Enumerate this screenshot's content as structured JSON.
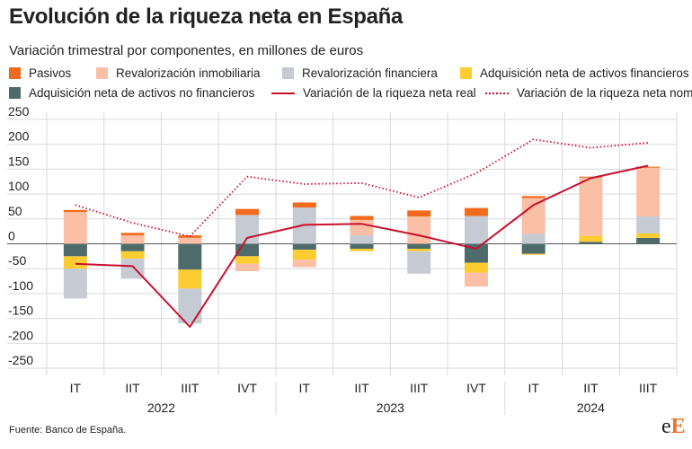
{
  "title": "Evolución de la riqueza neta en España",
  "subtitle": "Variación trimestral por componentes, en millones de euros",
  "source": "Fuente: Banco de España.",
  "logo": {
    "left": "e",
    "right": "E"
  },
  "legend": [
    {
      "label": "Pasivos",
      "kind": "box",
      "color": "#f26a1b"
    },
    {
      "label": "Revalorización inmobiliaria",
      "kind": "box",
      "color": "#fbbfa6"
    },
    {
      "label": "Revalorización financiera",
      "kind": "box",
      "color": "#c6cbd3"
    },
    {
      "label": "Adquisición neta de activos financieros",
      "kind": "box",
      "color": "#fccd31"
    },
    {
      "label": "Adquisición neta de activos no financieros",
      "kind": "box",
      "color": "#4e6b6b"
    },
    {
      "label": "Variación de la riqueza neta real",
      "kind": "line",
      "color": "#c8102e"
    },
    {
      "label": "Variación de la riqueza neta nominal",
      "kind": "dotted",
      "color": "#c8102e"
    }
  ],
  "chart_data": {
    "type": "bar",
    "stacked": true,
    "categories": [
      "IT",
      "IIT",
      "IIIT",
      "IVT",
      "IT",
      "IIT",
      "IIIT",
      "IVT",
      "IT",
      "IIT",
      "IIIT"
    ],
    "groups": [
      {
        "label": "2022",
        "start": 0,
        "end": 3
      },
      {
        "label": "2023",
        "start": 4,
        "end": 7
      },
      {
        "label": "2024",
        "start": 8,
        "end": 10
      }
    ],
    "ylim": [
      -250,
      250
    ],
    "yticks": [
      250,
      200,
      150,
      100,
      50,
      0,
      -50,
      -100,
      -150,
      -200,
      -250
    ],
    "grid": true,
    "legend_position": "top",
    "series": [
      {
        "name": "Adquisición neta de activos no financieros",
        "color": "#4e6b6b",
        "values": [
          -25,
          -15,
          -52,
          -25,
          -12,
          -10,
          -10,
          -38,
          -20,
          4,
          12
        ]
      },
      {
        "name": "Adquisición neta de activos financieros",
        "color": "#fccd31",
        "values": [
          -25,
          -15,
          -38,
          -15,
          -20,
          -5,
          -5,
          -20,
          -2,
          12,
          9
        ]
      },
      {
        "name": "Revalorización financiera",
        "color": "#c6cbd3",
        "values": [
          -60,
          -40,
          -70,
          58,
          73,
          17,
          -45,
          56,
          20,
          0,
          34
        ]
      },
      {
        "name": "Revalorización inmobiliaria",
        "color": "#fbbfa6",
        "values": [
          64,
          17,
          12,
          -15,
          -15,
          31,
          55,
          -28,
          72,
          117,
          98
        ]
      },
      {
        "name": "Pasivos",
        "color": "#f26a1b",
        "values": [
          4,
          5,
          5,
          12,
          10,
          8,
          12,
          16,
          4,
          2,
          2
        ]
      }
    ],
    "lines": [
      {
        "name": "Variación de la riqueza neta real",
        "color": "#c8102e",
        "style": "solid",
        "values": [
          -40,
          -45,
          -167,
          12,
          38,
          40,
          17,
          -10,
          78,
          132,
          157
        ]
      },
      {
        "name": "Variación de la riqueza neta nominal",
        "color": "#c8102e",
        "style": "dotted",
        "values": [
          78,
          42,
          15,
          135,
          120,
          122,
          93,
          142,
          210,
          193,
          203
        ]
      }
    ]
  }
}
